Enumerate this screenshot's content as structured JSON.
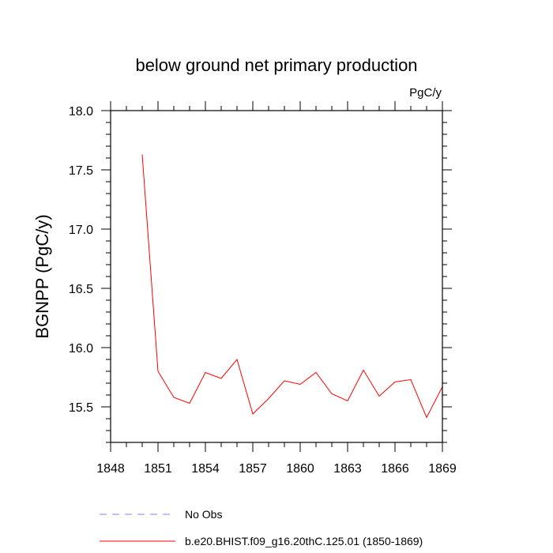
{
  "chart_data": {
    "type": "line",
    "title": "below ground net primary production",
    "units": "PgC/y",
    "xlabel": "",
    "ylabel": "BGNPP  (PgC/y)",
    "xlim": [
      1848,
      1869
    ],
    "ylim": [
      15.2,
      18.0
    ],
    "xticks": [
      1848,
      1851,
      1854,
      1857,
      1860,
      1863,
      1866,
      1869
    ],
    "yticks": [
      15.5,
      16.0,
      16.5,
      17.0,
      17.5,
      18.0
    ],
    "ytick_labels": [
      "15.5",
      "16.0",
      "16.5",
      "17.0",
      "17.5",
      "18.0"
    ],
    "series": [
      {
        "name": "b.e20.BHIST.f09_g16.20thC.125.01 (1850-1869)",
        "color": "#ff0000",
        "style": "solid",
        "x": [
          1850,
          1851,
          1852,
          1853,
          1854,
          1855,
          1856,
          1857,
          1858,
          1859,
          1860,
          1861,
          1862,
          1863,
          1864,
          1865,
          1866,
          1867,
          1868,
          1869
        ],
        "values": [
          17.63,
          15.8,
          15.58,
          15.53,
          15.79,
          15.74,
          15.9,
          15.44,
          15.57,
          15.72,
          15.69,
          15.79,
          15.61,
          15.55,
          15.81,
          15.59,
          15.71,
          15.73,
          15.41,
          15.67
        ]
      }
    ],
    "legend": [
      {
        "label": "No Obs",
        "color": "#8080ff",
        "style": "dashed"
      },
      {
        "label": "b.e20.BHIST.f09_g16.20thC.125.01 (1850-1869)",
        "color": "#ff0000",
        "style": "solid"
      }
    ],
    "legend_position": "bottom-left"
  }
}
